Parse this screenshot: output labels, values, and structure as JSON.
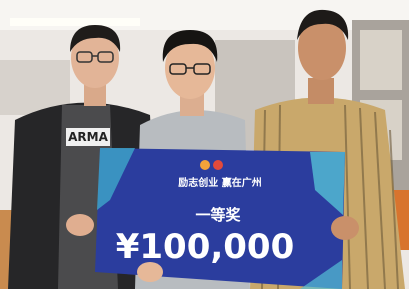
{
  "board": {
    "headline": "励志创业 赢在广州",
    "prize": "一等奖",
    "amount": "¥100,000"
  },
  "shirt_text": "ARMA"
}
